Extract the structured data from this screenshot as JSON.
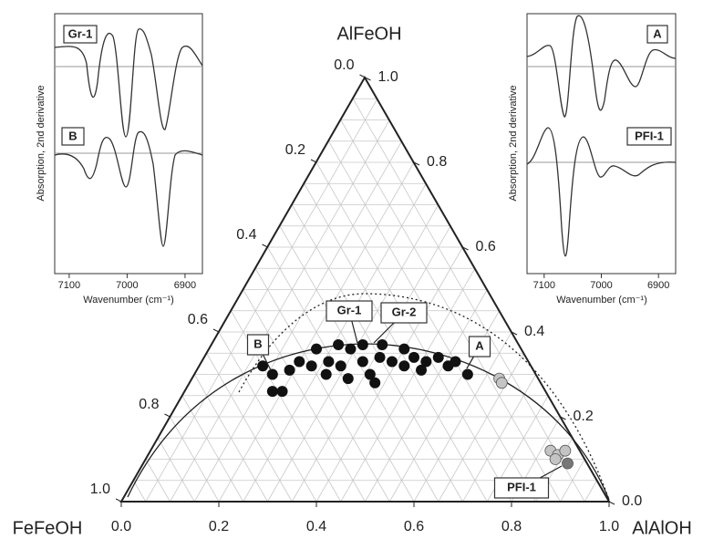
{
  "chart_data": [
    {
      "type": "ternary",
      "vertex_labels": {
        "top": "AlFeOH",
        "left": "FeFeOH",
        "right": "AlAlOH"
      },
      "bottom_ticks": [
        {
          "value": 0,
          "label": "0.0"
        },
        0.2,
        0.4,
        0.6,
        0.8,
        {
          "value": 1,
          "label": "1.0"
        }
      ],
      "left_ticks": [
        {
          "value": 0,
          "label": "0.0"
        },
        0.2,
        0.4,
        0.6,
        0.8,
        {
          "value": 1,
          "label": "1.0"
        }
      ],
      "right_ticks": [
        {
          "value": 1,
          "label": "1.0"
        },
        0.8,
        0.6,
        0.4,
        0.2,
        {
          "value": 0,
          "label": "0.0"
        }
      ],
      "grid": true,
      "series": [
        {
          "color": "#111111",
          "x": [
            0.13,
            0.16,
            0.18,
            0.2,
            0.19,
            0.2,
            0.22,
            0.23,
            0.27,
            0.26,
            0.26,
            0.29,
            0.32,
            0.29,
            0.31,
            0.33,
            0.36,
            0.38,
            0.36,
            0.35,
            0.39,
            0.4,
            0.42,
            0.43,
            0.46,
            0.46,
            0.48,
            0.51,
            0.52,
            0.56
          ],
          "values": [
            0.32,
            0.3,
            0.26,
            0.26,
            0.31,
            0.33,
            0.36,
            0.32,
            0.3,
            0.33,
            0.37,
            0.32,
            0.29,
            0.36,
            0.37,
            0.33,
            0.3,
            0.28,
            0.34,
            0.37,
            0.33,
            0.36,
            0.32,
            0.34,
            0.31,
            0.33,
            0.34,
            0.32,
            0.33,
            0.3
          ]
        },
        {
          "color": "#c4c4c4",
          "x": [
            0.63,
            0.64,
            0.82,
            0.84,
            0.85,
            0.84
          ],
          "values": [
            0.29,
            0.28,
            0.12,
            0.11,
            0.12,
            0.1
          ]
        },
        {
          "color": "#777777",
          "x": [
            0.87
          ],
          "values": [
            0.09
          ]
        }
      ],
      "annotations": [
        "B",
        "Gr-1",
        "Gr-2",
        "A",
        "PFI-1"
      ]
    },
    {
      "type": "spectrum",
      "traces": [
        "Gr-1",
        "B"
      ],
      "xlabel": "Wavenumber (cm⁻¹)",
      "ylabel": "Absorption, 2nd derivative",
      "xlim": [
        7125,
        6870
      ],
      "xticks": [
        7100,
        7000,
        6900
      ]
    },
    {
      "type": "spectrum",
      "traces": [
        "A",
        "PFI-1"
      ],
      "xlabel": "Wavenumber (cm⁻¹)",
      "ylabel": "Absorption, 2nd derivative",
      "xlim": [
        7130,
        6870
      ],
      "xticks": [
        7100,
        7000,
        6900
      ]
    }
  ]
}
